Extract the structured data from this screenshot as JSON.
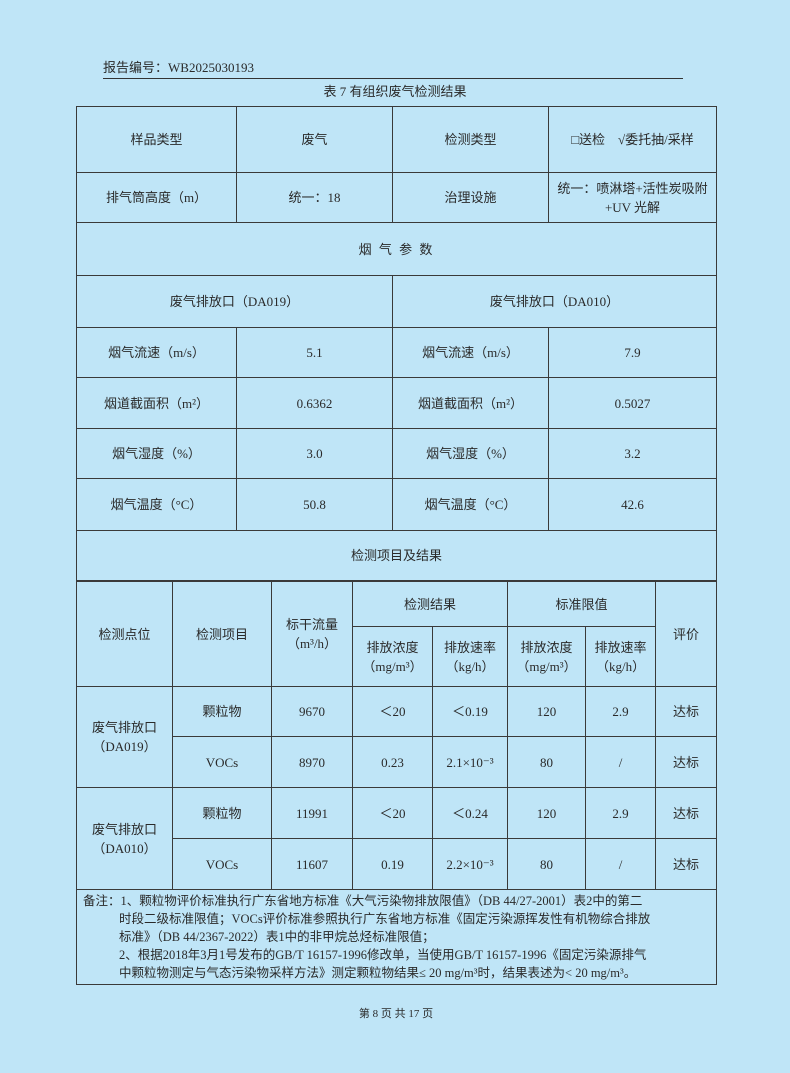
{
  "header": {
    "report_no": "报告编号：WB2025030193"
  },
  "caption": "表 7 有组织废气检测结果",
  "info": {
    "sample_type_label": "样品类型",
    "sample_type": "废气",
    "test_type_label": "检测类型",
    "test_type": "□送检　√委托抽/采样",
    "stack_height_label": "排气筒高度（m）",
    "stack_height": "统一：18",
    "treatment_label": "治理设施",
    "treatment": "统一：喷淋塔+活性炭吸附+UV 光解"
  },
  "flue": {
    "title": "烟 气 参 数",
    "outlets": [
      "废气排放口（DA019）",
      "废气排放口（DA010）"
    ],
    "rows": [
      {
        "label": "烟气流速（m/s）",
        "a": "5.1",
        "b": "7.9"
      },
      {
        "label": "烟道截面积（m²）",
        "a": "0.6362",
        "b": "0.5027"
      },
      {
        "label": "烟气湿度（%）",
        "a": "3.0",
        "b": "3.2"
      },
      {
        "label": "烟气温度（°C）",
        "a": "50.8",
        "b": "42.6"
      }
    ]
  },
  "results": {
    "title": "检测项目及结果",
    "headers": {
      "point": "检测点位",
      "item": "检测项目",
      "flow": "标干流量",
      "flow_unit": "（m³/h）",
      "result": "检测结果",
      "limit": "标准限值",
      "conc": "排放浓度",
      "conc_unit": "（mg/m³）",
      "rate": "排放速率",
      "rate_unit": "（kg/h）",
      "eval": "评价"
    },
    "groups": [
      {
        "point": "废气排放口",
        "point_code": "（DA019）",
        "rows": [
          {
            "item": "颗粒物",
            "flow": "9670",
            "conc": "＜20",
            "rate": "＜0.19",
            "lim_conc": "120",
            "lim_rate": "2.9",
            "eval": "达标"
          },
          {
            "item": "VOCs",
            "flow": "8970",
            "conc": "0.23",
            "rate": "2.1×10⁻³",
            "lim_conc": "80",
            "lim_rate": "/",
            "eval": "达标"
          }
        ]
      },
      {
        "point": "废气排放口",
        "point_code": "（DA010）",
        "rows": [
          {
            "item": "颗粒物",
            "flow": "11991",
            "conc": "＜20",
            "rate": "＜0.24",
            "lim_conc": "120",
            "lim_rate": "2.9",
            "eval": "达标"
          },
          {
            "item": "VOCs",
            "flow": "11607",
            "conc": "0.19",
            "rate": "2.2×10⁻³",
            "lim_conc": "80",
            "lim_rate": "/",
            "eval": "达标"
          }
        ]
      }
    ]
  },
  "notes": {
    "line1": "备注：1、颗粒物评价标准执行广东省地方标准《大气污染物排放限值》（DB 44/27-2001）表2中的第二",
    "line2": "时段二级标准限值；VOCs评价标准参照执行广东省地方标准《固定污染源挥发性有机物综合排放",
    "line3": "标准》（DB 44/2367-2022）表1中的非甲烷总烃标准限值；",
    "line4": "2、根据2018年3月1号发布的GB/T 16157-1996修改单，当使用GB/T 16157-1996《固定污染源排气",
    "line5": "中颗粒物测定与气态污染物采样方法》测定颗粒物结果≤ 20 mg/m³时，结果表述为< 20 mg/m³。"
  },
  "footer": "第 8 页 共 17 页"
}
